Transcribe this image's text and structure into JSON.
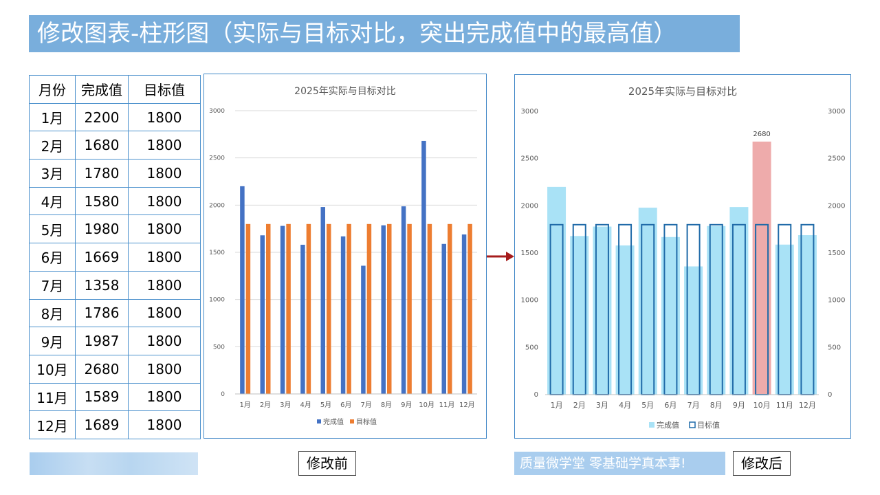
{
  "page_title": "修改图表-柱形图（实际与目标对比，突出完成值中的最高值）",
  "table": {
    "headers": [
      "月份",
      "完成值",
      "目标值"
    ],
    "rows": [
      [
        "1月",
        "2200",
        "1800"
      ],
      [
        "2月",
        "1680",
        "1800"
      ],
      [
        "3月",
        "1780",
        "1800"
      ],
      [
        "4月",
        "1580",
        "1800"
      ],
      [
        "5月",
        "1980",
        "1800"
      ],
      [
        "6月",
        "1669",
        "1800"
      ],
      [
        "7月",
        "1358",
        "1800"
      ],
      [
        "8月",
        "1786",
        "1800"
      ],
      [
        "9月",
        "1987",
        "1800"
      ],
      [
        "10月",
        "2680",
        "1800"
      ],
      [
        "11月",
        "1589",
        "1800"
      ],
      [
        "12月",
        "1689",
        "1800"
      ]
    ]
  },
  "captions": {
    "before": "修改前",
    "after": "修改后",
    "slogan": "质量微学堂 零基础学真本事!"
  },
  "colors": {
    "before_actual": "#4472c4",
    "before_target": "#ed7d31",
    "after_actual": "#a9e2f6",
    "after_highlight": "#eeabab",
    "after_target_outline": "#1f6aa8",
    "arrow": "#a61c1c"
  },
  "chart_data": [
    {
      "type": "bar",
      "title": "2025年实际与目标对比",
      "categories": [
        "1月",
        "2月",
        "3月",
        "4月",
        "5月",
        "6月",
        "7月",
        "8月",
        "9月",
        "10月",
        "11月",
        "12月"
      ],
      "series": [
        {
          "name": "完成值",
          "values": [
            2200,
            1680,
            1780,
            1580,
            1980,
            1669,
            1358,
            1786,
            1987,
            2680,
            1589,
            1689
          ]
        },
        {
          "name": "目标值",
          "values": [
            1800,
            1800,
            1800,
            1800,
            1800,
            1800,
            1800,
            1800,
            1800,
            1800,
            1800,
            1800
          ]
        }
      ],
      "ylim": [
        0,
        3000
      ],
      "yticks": [
        "0",
        "500",
        "1000",
        "1500",
        "2000",
        "2500",
        "3000"
      ],
      "grid": true,
      "legend": "bottom"
    },
    {
      "type": "bar",
      "title": "2025年实际与目标对比",
      "categories": [
        "1月",
        "2月",
        "3月",
        "4月",
        "5月",
        "6月",
        "7月",
        "8月",
        "9月",
        "10月",
        "11月",
        "12月"
      ],
      "series": [
        {
          "name": "完成值",
          "values": [
            2200,
            1680,
            1780,
            1580,
            1980,
            1669,
            1358,
            1786,
            1987,
            2680,
            1589,
            1689
          ]
        },
        {
          "name": "目标值",
          "values": [
            1800,
            1800,
            1800,
            1800,
            1800,
            1800,
            1800,
            1800,
            1800,
            1800,
            1800,
            1800
          ]
        }
      ],
      "ylim": [
        0,
        3000
      ],
      "yticks": [
        "0",
        "500",
        "1000",
        "1500",
        "2000",
        "2500",
        "3000"
      ],
      "secondary_yticks": [
        "0",
        "500",
        "1000",
        "1500",
        "2000",
        "2500",
        "3000"
      ],
      "highlight": {
        "category": "10月",
        "label": "2680"
      },
      "grid": false,
      "legend": "bottom"
    }
  ]
}
